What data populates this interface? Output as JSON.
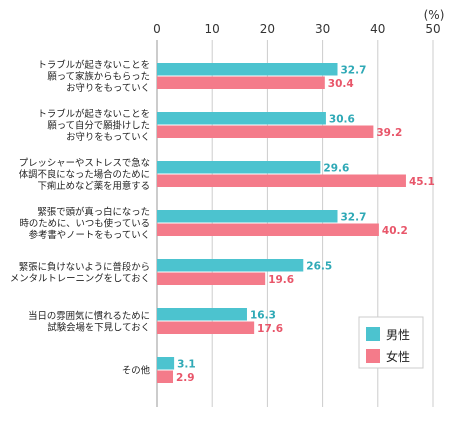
{
  "chart_data": {
    "type": "bar",
    "orientation": "horizontal",
    "unit_label": "(%)",
    "xlim": [
      0,
      50
    ],
    "ticks": [
      0,
      10,
      20,
      30,
      40,
      50
    ],
    "grid": true,
    "legend_position": "bottom-right",
    "categories": [
      [
        "トラブルが起きないことを",
        "願って家族からもらった",
        "お守りをもっていく"
      ],
      [
        "トラブルが起きないことを",
        "願って自分で願掛けした",
        "お守りをもっていく"
      ],
      [
        "プレッシャーやストレスで急な",
        "体調不良になった場合のために",
        "下痢止めなど薬を用意する"
      ],
      [
        "緊張で頭が真っ白になった",
        "時のために、いつも使っている",
        "参考書やノートをもっていく"
      ],
      [
        "緊張に負けないように普段から",
        "メンタルトレーニングをしておく"
      ],
      [
        "当日の雰囲気に慣れるために",
        "試験会場を下見しておく"
      ],
      [
        "その他"
      ]
    ],
    "series": [
      {
        "name": "男性",
        "color": "#4cc3cf",
        "values": [
          32.7,
          30.6,
          29.6,
          32.7,
          26.5,
          16.3,
          3.1
        ]
      },
      {
        "name": "女性",
        "color": "#f47b8a",
        "values": [
          30.4,
          39.2,
          45.1,
          40.2,
          19.6,
          17.6,
          2.9
        ]
      }
    ]
  }
}
